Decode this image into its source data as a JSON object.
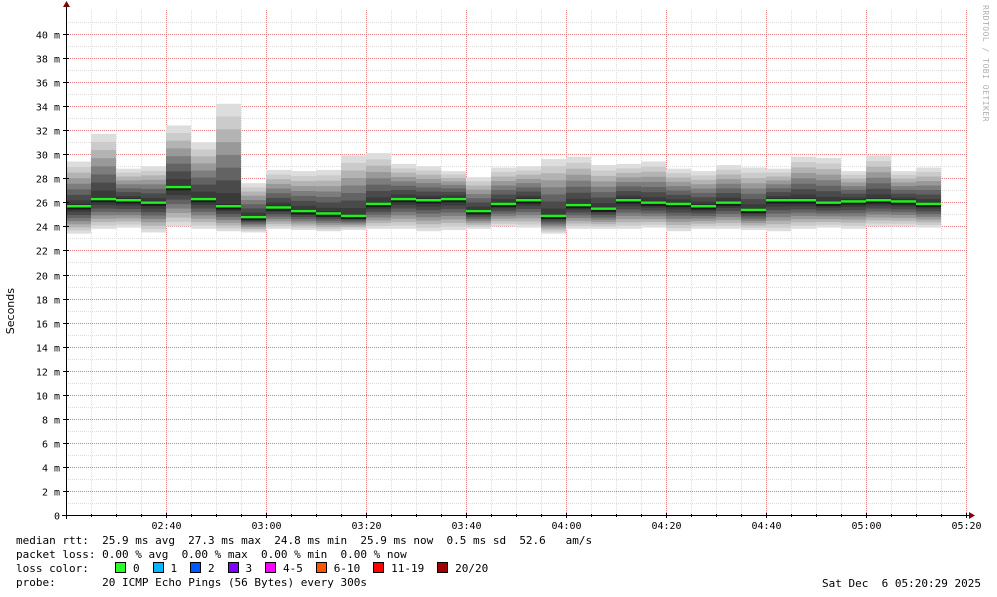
{
  "watermark": "RRDTOOL / TOBI OETIKER",
  "colors": {
    "grid_minor": "#dddddd",
    "grid_major": "#e08080",
    "median_line": "#22ee22",
    "axis": "#000000",
    "arrow": "#800000"
  },
  "chart_data": {
    "type": "area",
    "ylabel": "Seconds",
    "ylim": [
      0,
      0.042
    ],
    "y_ticks": [
      {
        "value": 0,
        "label": "0"
      },
      {
        "value": 0.002,
        "label": "2 m"
      },
      {
        "value": 0.004,
        "label": "4 m"
      },
      {
        "value": 0.006,
        "label": "6 m"
      },
      {
        "value": 0.008,
        "label": "8 m"
      },
      {
        "value": 0.01,
        "label": "10 m"
      },
      {
        "value": 0.012,
        "label": "12 m"
      },
      {
        "value": 0.014,
        "label": "14 m"
      },
      {
        "value": 0.016,
        "label": "16 m"
      },
      {
        "value": 0.018,
        "label": "18 m"
      },
      {
        "value": 0.02,
        "label": "20 m"
      },
      {
        "value": 0.022,
        "label": "22 m"
      },
      {
        "value": 0.024,
        "label": "24 m"
      },
      {
        "value": 0.026,
        "label": "26 m"
      },
      {
        "value": 0.028,
        "label": "28 m"
      },
      {
        "value": 0.03,
        "label": "30 m"
      },
      {
        "value": 0.032,
        "label": "32 m"
      },
      {
        "value": 0.034,
        "label": "34 m"
      },
      {
        "value": 0.036,
        "label": "36 m"
      },
      {
        "value": 0.038,
        "label": "38 m"
      },
      {
        "value": 0.04,
        "label": "40 m"
      }
    ],
    "xlim": [
      "02:20",
      "05:20"
    ],
    "x_ticks": [
      "02:40",
      "03:00",
      "03:20",
      "03:40",
      "04:00",
      "04:20",
      "04:40",
      "05:00",
      "05:20"
    ],
    "interval_minutes": 5,
    "series": [
      {
        "name": "median rtt",
        "start": "02:20",
        "median_ms": [
          25.7,
          26.3,
          26.2,
          26.0,
          27.3,
          26.3,
          25.7,
          24.8,
          25.6,
          25.3,
          25.1,
          24.9,
          25.9,
          26.3,
          26.2,
          26.3,
          25.3,
          25.9,
          26.2,
          24.9,
          25.8,
          25.5,
          26.2,
          26.0,
          25.9,
          25.7,
          26.0,
          25.4,
          26.2,
          26.2,
          26.0,
          26.1,
          26.2,
          26.1,
          25.9
        ],
        "min_ms": [
          23.4,
          23.8,
          23.9,
          23.5,
          24.0,
          23.8,
          23.6,
          23.5,
          23.8,
          23.7,
          23.6,
          23.7,
          23.8,
          23.8,
          23.6,
          23.7,
          23.8,
          24.0,
          23.9,
          23.4,
          23.8,
          23.8,
          23.8,
          23.9,
          23.6,
          23.8,
          23.8,
          23.7,
          23.6,
          23.8,
          23.9,
          23.8,
          24.0,
          24.0,
          23.9
        ],
        "max_ms": [
          29.4,
          31.7,
          28.8,
          29.0,
          32.4,
          31.0,
          34.2,
          27.6,
          28.7,
          28.6,
          28.7,
          29.9,
          30.1,
          29.2,
          29.0,
          28.6,
          28.1,
          28.9,
          29.0,
          29.6,
          29.8,
          29.1,
          29.2,
          29.4,
          28.8,
          28.6,
          29.1,
          28.9,
          28.8,
          29.8,
          29.7,
          28.6,
          29.9,
          28.6,
          28.9
        ]
      }
    ]
  },
  "legend": {
    "line1": "median rtt:  25.9 ms avg  27.3 ms max  24.8 ms min  25.9 ms now  0.5 ms sd  52.6   am/s",
    "line2": "packet loss: 0.00 % avg  0.00 % max  0.00 % min  0.00 % now",
    "loss_label": "loss color:",
    "loss_items": [
      {
        "label": "0",
        "color": "#26ff26"
      },
      {
        "label": "1",
        "color": "#00b8ff"
      },
      {
        "label": "2",
        "color": "#0059ff"
      },
      {
        "label": "3",
        "color": "#7e00ff"
      },
      {
        "label": "4-5",
        "color": "#ff00ff"
      },
      {
        "label": "6-10",
        "color": "#ff5500"
      },
      {
        "label": "11-19",
        "color": "#ff0000"
      },
      {
        "label": "20/20",
        "color": "#a10000"
      }
    ],
    "probe_label": "probe:",
    "probe_text": "20 ICMP Echo Pings (56 Bytes) every 300s",
    "timestamp": "Sat Dec  6 05:20:29 2025"
  }
}
